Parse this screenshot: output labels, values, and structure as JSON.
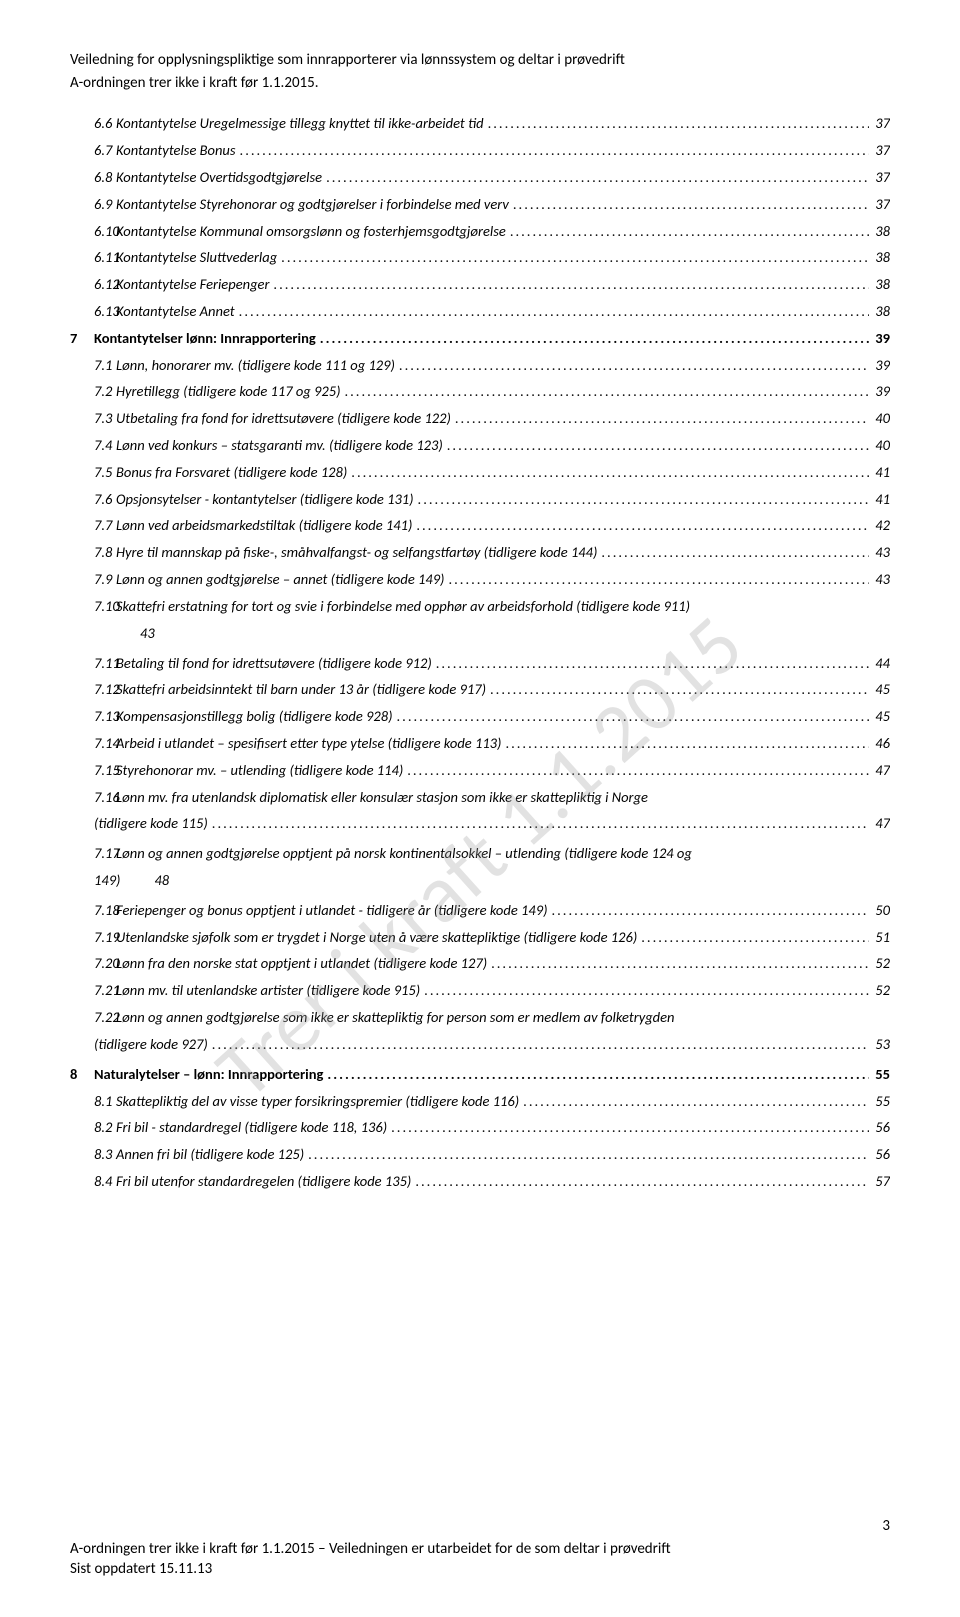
{
  "header": {
    "title": "Veiledning for opplysningspliktige som innrapporterer via lønnssystem og deltar i prøvedrift",
    "subtitle": "A-ordningen trer ikke i kraft før 1.1.2015."
  },
  "watermark": "Trer i kraft 1.1.2015",
  "page_number": "3",
  "footer": {
    "line1": "A-ordningen trer ikke i kraft før 1.1.2015 – Veiledningen er utarbeidet for de som deltar i prøvedrift",
    "line2": "Sist oppdatert 15.11.13"
  },
  "toc": [
    {
      "num": "6.6",
      "text": "Kontantytelse Uregelmessige tillegg knyttet til ikke-arbeidet tid",
      "page": "37"
    },
    {
      "num": "6.7",
      "text": "Kontantytelse Bonus",
      "page": "37"
    },
    {
      "num": "6.8",
      "text": "Kontantytelse Overtidsgodtgjørelse",
      "page": "37"
    },
    {
      "num": "6.9",
      "text": "Kontantytelse Styrehonorar og godtgjørelser i forbindelse med verv",
      "page": "37"
    },
    {
      "num": "6.10",
      "text": "Kontantytelse Kommunal omsorgslønn og fosterhjemsgodtgjørelse",
      "page": "38"
    },
    {
      "num": "6.11",
      "text": "Kontantytelse Sluttvederlag",
      "page": "38"
    },
    {
      "num": "6.12",
      "text": "Kontantytelse Feriepenger",
      "page": "38"
    },
    {
      "num": "6.13",
      "text": "Kontantytelse Annet",
      "page": "38"
    },
    {
      "type": "chapter",
      "chapnum": "7",
      "text": "Kontantytelser lønn: Innrapportering",
      "page": "39"
    },
    {
      "num": "7.1",
      "text": "Lønn, honorarer mv. (tidligere kode 111 og 129)",
      "page": "39"
    },
    {
      "num": "7.2",
      "text": "Hyretillegg (tidligere kode 117 og 925)",
      "page": "39"
    },
    {
      "num": "7.3",
      "text": "Utbetaling fra fond for idrettsutøvere  (tidligere kode 122)",
      "page": "40"
    },
    {
      "num": "7.4",
      "text": "Lønn ved konkurs – statsgaranti mv.  (tidligere kode 123)",
      "page": "40"
    },
    {
      "num": "7.5",
      "text": "Bonus fra Forsvaret  (tidligere kode 128)",
      "page": "41"
    },
    {
      "num": "7.6",
      "text": "Opsjonsytelser - kontantytelser  (tidligere kode 131)",
      "page": "41"
    },
    {
      "num": "7.7",
      "text": "Lønn ved arbeidsmarkedstiltak  (tidligere kode 141)",
      "page": "42"
    },
    {
      "num": "7.8",
      "text": "Hyre til mannskap på fiske-, småhvalfangst- og selfangstfartøy (tidligere kode 144)",
      "page": "43"
    },
    {
      "num": "7.9",
      "text": "Lønn og annen godtgjørelse – annet  (tidligere kode 149)",
      "page": "43"
    },
    {
      "num": "7.10",
      "text": "Skattefri erstatning for tort og svie i forbindelse med opphør av arbeidsforhold  (tidligere kode 911)",
      "cont": "43"
    },
    {
      "num": "7.11",
      "text": "Betaling til fond for idrettsutøvere (tidligere kode 912)",
      "page": "44"
    },
    {
      "num": "7.12",
      "text": "Skattefri arbeidsinntekt til barn under 13 år  (tidligere kode 917)",
      "page": "45"
    },
    {
      "num": "7.13",
      "text": "Kompensasjonstillegg bolig  (tidligere kode 928)",
      "page": "45"
    },
    {
      "num": "7.14",
      "text": "Arbeid i utlandet – spesifisert etter type ytelse   (tidligere kode 113)",
      "page": "46"
    },
    {
      "num": "7.15",
      "text": "Styrehonorar mv. – utlending  (tidligere kode 114)",
      "page": "47"
    },
    {
      "num": "7.16",
      "text": "Lønn mv. fra utenlandsk diplomatisk eller konsulær stasjon som ikke er skattepliktig i Norge",
      "cont_prefix": "(tidligere kode 115)",
      "page": "47"
    },
    {
      "num": "7.17",
      "text": "Lønn og annen godtgjørelse opptjent på norsk kontinentalsokkel – utlending  (tidligere kode 124 og",
      "cont_prefix": "149)",
      "cont_suffix": "48"
    },
    {
      "num": "7.18",
      "text": "Feriepenger og bonus opptjent i utlandet - tidligere år  (tidligere kode 149)",
      "page": "50"
    },
    {
      "num": "7.19",
      "text": "Utenlandske sjøfolk som er trygdet i Norge uten å være skattepliktige (tidligere kode 126)",
      "page": "51"
    },
    {
      "num": "7.20",
      "text": "Lønn fra den norske stat opptjent i utlandet (tidligere kode 127)",
      "page": "52"
    },
    {
      "num": "7.21",
      "text": "Lønn mv. til utenlandske artister (tidligere kode 915)",
      "page": "52"
    },
    {
      "num": "7.22",
      "text": "Lønn og annen godtgjørelse som ikke er skattepliktig for person som er medlem av folketrygden",
      "cont_prefix": "(tidligere kode 927)",
      "page": "53"
    },
    {
      "type": "chapter",
      "chapnum": "8",
      "text": "Naturalytelser – lønn: Innrapportering",
      "page": "55"
    },
    {
      "num": "8.1",
      "text": "Skattepliktig del av visse typer forsikringspremier  (tidligere kode 116)",
      "page": "55"
    },
    {
      "num": "8.2",
      "text": "Fri bil - standardregel (tidligere kode 118, 136)",
      "page": "56"
    },
    {
      "num": "8.3",
      "text": "Annen fri bil (tidligere kode 125)",
      "page": "56"
    },
    {
      "num": "8.4",
      "text": "Fri bil utenfor standardregelen (tidligere kode 135)",
      "page": "57"
    }
  ]
}
